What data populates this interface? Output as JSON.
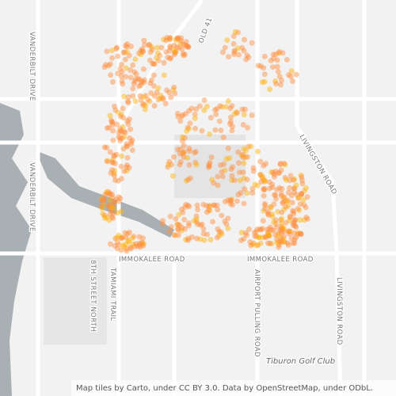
{
  "map": {
    "roads": [
      "VANDERBILT DRIVE",
      "VANDERBILT DRIVE",
      "LIVINGSTON ROAD",
      "LIVINGSTON ROAD",
      "IMMOKALEE ROAD",
      "IMMOKALEE ROAD",
      "TAMIAMI TRAIL",
      "8TH STREET NORTH",
      "AIRPORT PULLING ROAD",
      "OLD 41"
    ],
    "places": [
      "Tiburon Golf Club"
    ],
    "attribution": "Map tiles by Carto, under CC BY 3.0. Data by OpenStreetMap, under ODbL."
  }
}
